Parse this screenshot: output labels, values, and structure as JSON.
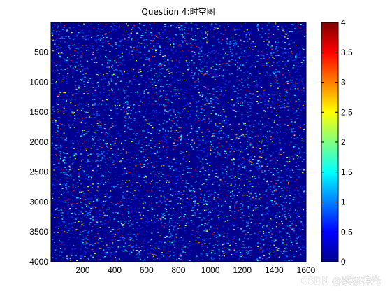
{
  "chart_data": {
    "type": "heatmap",
    "title": "Question 4:时空图",
    "xlabel": "",
    "ylabel": "",
    "x_range": [
      1,
      1600
    ],
    "y_range": [
      1,
      4000
    ],
    "y_reversed": true,
    "x_ticks": [
      200,
      400,
      600,
      800,
      1000,
      1200,
      1400,
      1600
    ],
    "y_ticks": [
      500,
      1000,
      1500,
      2000,
      2500,
      3000,
      3500,
      4000
    ],
    "x_tick_labels": [
      "200",
      "400",
      "600",
      "800",
      "1000",
      "1200",
      "1400",
      "1600"
    ],
    "y_tick_labels": [
      "500",
      "1000",
      "1500",
      "2000",
      "2500",
      "3000",
      "3500",
      "4000"
    ],
    "value_range": [
      0,
      4
    ],
    "colormap": "jet",
    "colorbar_ticks": [
      0,
      0.5,
      1,
      1.5,
      2,
      2.5,
      3,
      3.5,
      4
    ],
    "colorbar_tick_labels": [
      "0",
      "0.5",
      "1",
      "1.5",
      "2",
      "2.5",
      "3",
      "3.5",
      "4"
    ],
    "dominant_value": 0,
    "grid": false
  },
  "watermark": "CSDN @紫极神光"
}
